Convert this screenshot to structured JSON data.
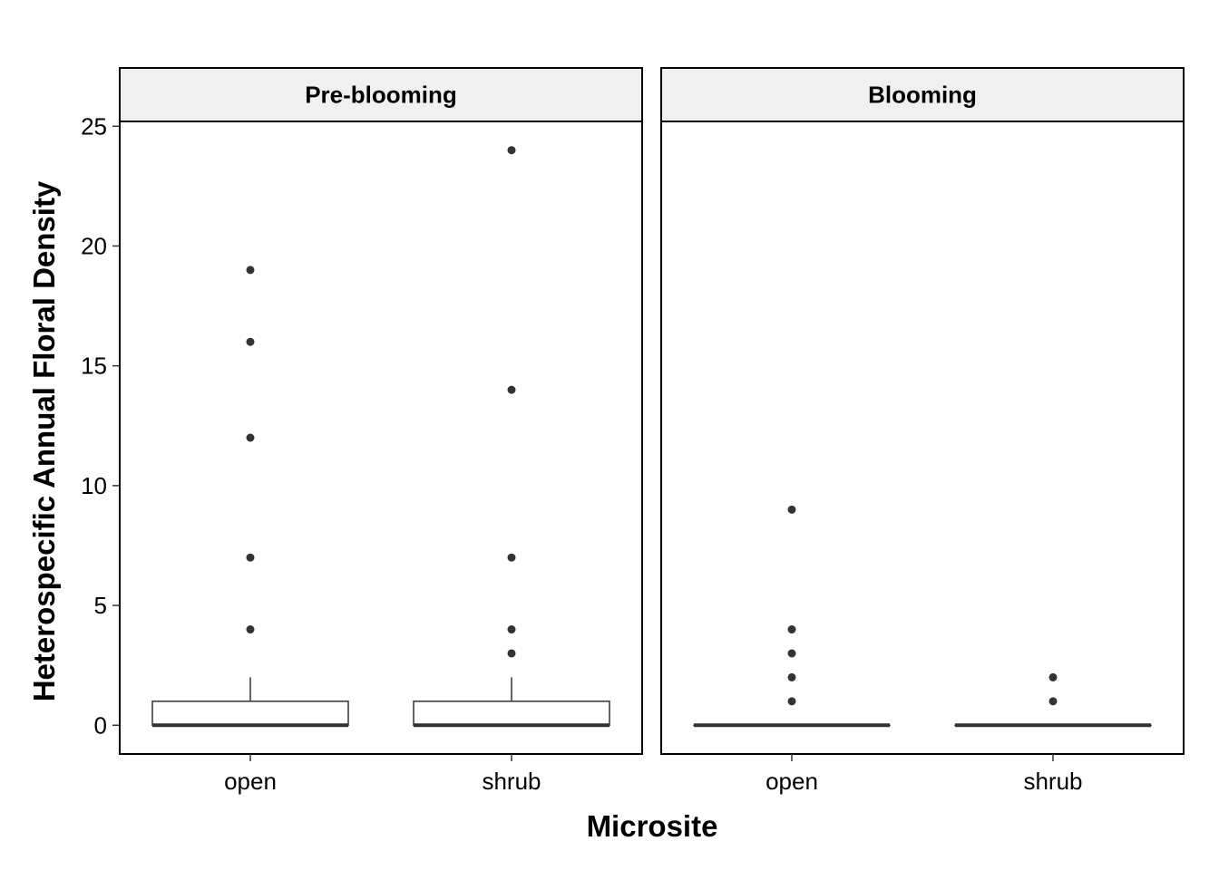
{
  "chart_data": {
    "type": "boxplot",
    "xlabel": "Microsite",
    "ylabel": "Heterospecific Annual Floral Density",
    "ylim": [
      -1.2,
      25.2
    ],
    "yticks": [
      0,
      5,
      10,
      15,
      20,
      25
    ],
    "categories": [
      "open",
      "shrub"
    ],
    "grid": false,
    "facets": [
      {
        "label": "Pre-blooming",
        "boxes": [
          {
            "category": "open",
            "min": 0,
            "q1": 0,
            "median": 0,
            "q3": 1,
            "max": 2,
            "outliers": [
              4,
              7,
              12,
              16,
              19
            ]
          },
          {
            "category": "shrub",
            "min": 0,
            "q1": 0,
            "median": 0,
            "q3": 1,
            "max": 2,
            "outliers": [
              3,
              4,
              7,
              14,
              24
            ]
          }
        ]
      },
      {
        "label": "Blooming",
        "boxes": [
          {
            "category": "open",
            "min": 0,
            "q1": 0,
            "median": 0,
            "q3": 0,
            "max": 0,
            "outliers": [
              1,
              2,
              3,
              4,
              9
            ]
          },
          {
            "category": "shrub",
            "min": 0,
            "q1": 0,
            "median": 0,
            "q3": 0,
            "max": 0,
            "outliers": [
              1,
              2
            ]
          }
        ]
      }
    ]
  }
}
